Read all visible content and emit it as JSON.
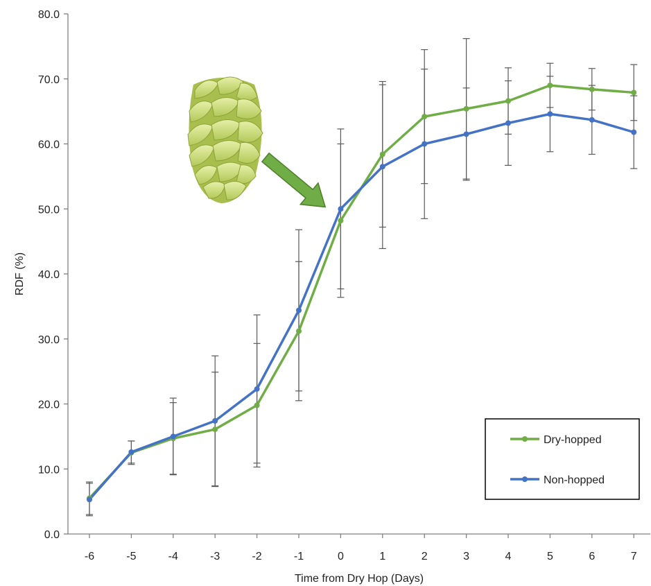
{
  "chart_data": {
    "type": "line",
    "xlabel": "Time from Dry Hop (Days)",
    "ylabel": "RDF (%)",
    "x": [
      -6,
      -5,
      -4,
      -3,
      -2,
      -1,
      0,
      1,
      2,
      3,
      4,
      5,
      6,
      7
    ],
    "x_tick_labels": [
      "-6",
      "-5",
      "-4",
      "-3",
      "-2",
      "-1",
      "0",
      "1",
      "2",
      "3",
      "4",
      "5",
      "6",
      "7"
    ],
    "ylim": [
      0,
      80
    ],
    "y_ticks": [
      0,
      10,
      20,
      30,
      40,
      50,
      60,
      70,
      80
    ],
    "y_tick_labels": [
      "0.0",
      "10.0",
      "20.0",
      "30.0",
      "40.0",
      "50.0",
      "60.0",
      "70.0",
      "80.0"
    ],
    "grid": false,
    "legend_position": "bottom-right",
    "series": [
      {
        "name": "Dry-hopped",
        "color": "#70ad47",
        "values": [
          5.5,
          12.5,
          14.7,
          16.1,
          19.8,
          31.2,
          48.2,
          58.4,
          64.2,
          65.4,
          66.6,
          69.0,
          68.4,
          67.9
        ],
        "error": [
          2.5,
          1.8,
          5.5,
          8.8,
          9.5,
          10.7,
          11.8,
          11.2,
          10.3,
          10.8,
          5.1,
          3.4,
          3.2,
          4.3
        ]
      },
      {
        "name": "Non-hopped",
        "color": "#4472c4",
        "values": [
          5.3,
          12.6,
          15.0,
          17.4,
          22.3,
          34.4,
          50.0,
          56.5,
          60.0,
          61.5,
          63.2,
          64.6,
          63.7,
          61.8
        ],
        "error": [
          2.5,
          1.7,
          5.9,
          10.0,
          11.4,
          12.4,
          12.3,
          12.6,
          11.5,
          7.1,
          6.5,
          5.8,
          5.3,
          5.6
        ]
      }
    ],
    "annotations": {
      "image": "hop-cone",
      "arrow_color": "#70ad47",
      "arrow_target_x": 0
    }
  }
}
